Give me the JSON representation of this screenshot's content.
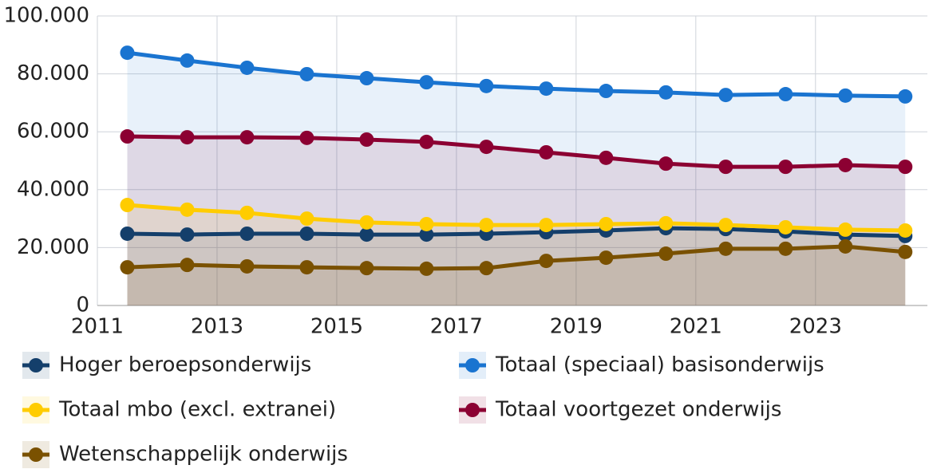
{
  "chart_data": {
    "type": "line",
    "x": [
      2011.5,
      2012.5,
      2013.5,
      2014.5,
      2015.5,
      2016.5,
      2017.5,
      2018.5,
      2019.5,
      2020.5,
      2021.5,
      2022.5,
      2023.5,
      2024.5
    ],
    "series": [
      {
        "name": "Hoger beroepsonderwijs",
        "color": "#143f6b",
        "values": [
          24.8,
          24.5,
          24.8,
          24.8,
          24.5,
          24.5,
          24.8,
          25.3,
          25.9,
          26.7,
          26.4,
          25.6,
          24.5,
          24.0
        ]
      },
      {
        "name": "Totaal (speciaal) basisonderwijs",
        "color": "#1a74d0",
        "values": [
          87.3,
          84.6,
          82.1,
          79.9,
          78.5,
          77.1,
          75.8,
          74.9,
          74.1,
          73.6,
          72.7,
          73.0,
          72.5,
          72.2
        ]
      },
      {
        "name": "Totaal mbo (excl. extranei)",
        "color": "#ffcc00",
        "values": [
          34.7,
          33.1,
          32.0,
          30.0,
          28.7,
          28.1,
          27.8,
          27.8,
          28.1,
          28.4,
          27.8,
          27.0,
          26.2,
          25.9
        ]
      },
      {
        "name": "Totaal voortgezet onderwijs",
        "color": "#8c0032",
        "values": [
          58.4,
          58.1,
          58.1,
          57.9,
          57.3,
          56.5,
          54.8,
          52.9,
          51.0,
          49.0,
          47.9,
          47.9,
          48.5,
          47.9
        ]
      },
      {
        "name": "Wetenschappelijk onderwijs",
        "color": "#7a5100",
        "values": [
          13.2,
          14.0,
          13.5,
          13.2,
          12.9,
          12.7,
          12.9,
          15.4,
          16.5,
          17.9,
          19.6,
          19.6,
          20.4,
          18.5
        ]
      }
    ],
    "xlim": [
      2011,
      2024.87
    ],
    "xticks": [
      2011,
      2013,
      2015,
      2017,
      2019,
      2021,
      2023
    ],
    "ylim": [
      0,
      100
    ],
    "yticks": [
      0,
      {
        "value": 20,
        "label": "20.000"
      },
      {
        "value": 40,
        "label": "40.000"
      },
      {
        "value": 60,
        "label": "60.000"
      },
      {
        "value": 80,
        "label": "80.000"
      },
      {
        "value": 100,
        "label": "100.000"
      }
    ],
    "grid": true,
    "legend": "bottom"
  }
}
